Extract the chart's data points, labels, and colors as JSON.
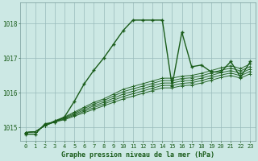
{
  "title": "Graphe pression niveau de la mer (hPa)",
  "background_color": "#cce8e4",
  "plot_bg_color": "#cce8e4",
  "grid_color": "#99bbbb",
  "line_color": "#1a5c1a",
  "ylim": [
    1014.6,
    1018.6
  ],
  "yticks": [
    1015,
    1016,
    1017,
    1018
  ],
  "xticks": [
    0,
    1,
    2,
    3,
    4,
    5,
    6,
    7,
    8,
    9,
    10,
    11,
    12,
    13,
    14,
    15,
    16,
    17,
    18,
    19,
    20,
    21,
    22,
    23
  ],
  "main_series": [
    1014.8,
    1014.8,
    1015.1,
    1015.15,
    1015.3,
    1015.75,
    1016.25,
    1016.65,
    1017.0,
    1017.4,
    1017.8,
    1018.1,
    1018.1,
    1018.1,
    1018.1,
    1016.2,
    1017.75,
    1016.75,
    1016.8,
    1016.6,
    1016.6,
    1016.9,
    1016.45,
    1016.9
  ],
  "trend_lines": [
    [
      1014.85,
      1014.87,
      1015.05,
      1015.15,
      1015.22,
      1015.32,
      1015.42,
      1015.52,
      1015.62,
      1015.72,
      1015.82,
      1015.9,
      1015.98,
      1016.06,
      1016.14,
      1016.14,
      1016.2,
      1016.22,
      1016.28,
      1016.36,
      1016.44,
      1016.5,
      1016.42,
      1016.55
    ],
    [
      1014.85,
      1014.87,
      1015.05,
      1015.16,
      1015.24,
      1015.35,
      1015.46,
      1015.57,
      1015.67,
      1015.78,
      1015.89,
      1015.97,
      1016.05,
      1016.13,
      1016.21,
      1016.21,
      1016.27,
      1016.29,
      1016.35,
      1016.43,
      1016.51,
      1016.57,
      1016.49,
      1016.62
    ],
    [
      1014.85,
      1014.87,
      1015.05,
      1015.17,
      1015.26,
      1015.38,
      1015.5,
      1015.62,
      1015.72,
      1015.84,
      1015.96,
      1016.04,
      1016.12,
      1016.2,
      1016.28,
      1016.28,
      1016.34,
      1016.36,
      1016.42,
      1016.5,
      1016.58,
      1016.64,
      1016.56,
      1016.69
    ],
    [
      1014.85,
      1014.87,
      1015.05,
      1015.18,
      1015.28,
      1015.41,
      1015.54,
      1015.67,
      1015.77,
      1015.9,
      1016.03,
      1016.11,
      1016.19,
      1016.27,
      1016.35,
      1016.35,
      1016.41,
      1016.43,
      1016.49,
      1016.57,
      1016.65,
      1016.71,
      1016.63,
      1016.76
    ],
    [
      1014.85,
      1014.87,
      1015.05,
      1015.19,
      1015.3,
      1015.44,
      1015.58,
      1015.72,
      1015.82,
      1015.96,
      1016.1,
      1016.18,
      1016.26,
      1016.34,
      1016.42,
      1016.42,
      1016.48,
      1016.5,
      1016.56,
      1016.64,
      1016.72,
      1016.78,
      1016.7,
      1016.83
    ]
  ]
}
